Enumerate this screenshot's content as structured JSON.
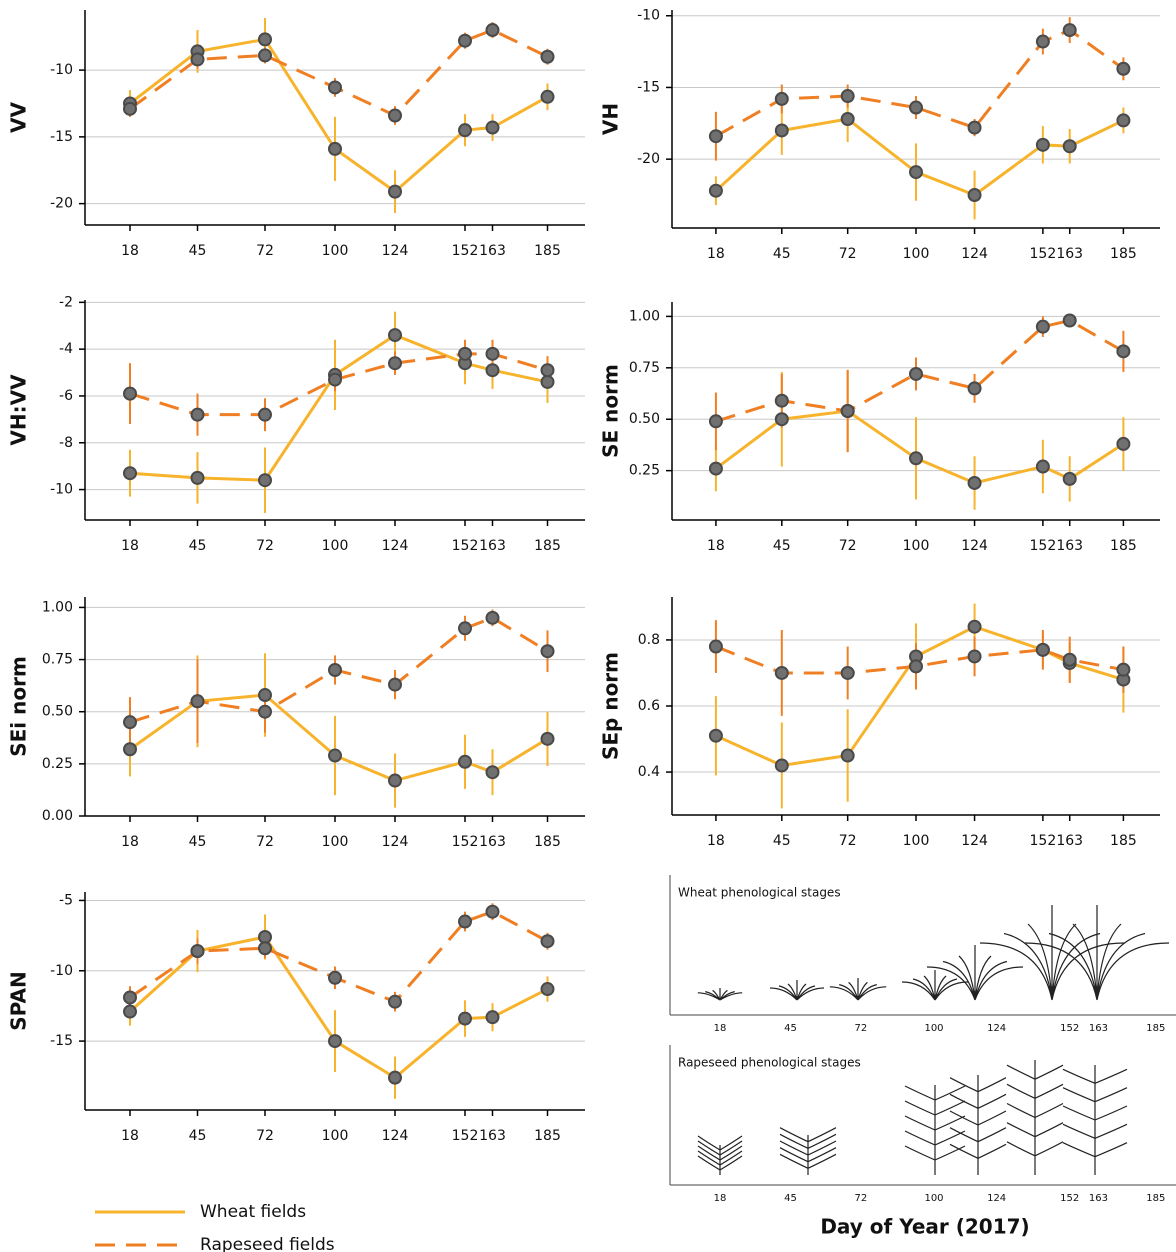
{
  "chart_data": [
    {
      "type": "line",
      "ylabel": "VV",
      "x": [
        18,
        45,
        72,
        100,
        124,
        152,
        163,
        185
      ],
      "xlim": [
        0,
        200
      ],
      "xticks": [
        18,
        45,
        72,
        100,
        124,
        152,
        163,
        185
      ],
      "ylim": [
        -21.6,
        -5.5
      ],
      "yticks": [
        -10,
        -15,
        -20
      ],
      "grid": true,
      "series": [
        {
          "name": "Wheat fields",
          "color": "#f7b32b",
          "linestyle": "solid",
          "values": [
            -12.5,
            -8.6,
            -7.7,
            -15.9,
            -19.1,
            -14.5,
            -14.3,
            -12.0
          ],
          "errors": [
            1.0,
            1.6,
            1.6,
            2.4,
            1.6,
            1.2,
            1.0,
            1.0
          ]
        },
        {
          "name": "Rapeseed fields",
          "color": "#f07f23",
          "linestyle": "dashed",
          "values": [
            -12.9,
            -9.2,
            -8.9,
            -11.3,
            -13.4,
            -7.8,
            -7.0,
            -9.0
          ],
          "errors": [
            0.6,
            0.7,
            0.6,
            0.7,
            0.7,
            0.6,
            0.6,
            0.6
          ]
        }
      ]
    },
    {
      "type": "line",
      "ylabel": "VH",
      "x": [
        18,
        45,
        72,
        100,
        124,
        152,
        163,
        185
      ],
      "xlim": [
        0,
        200
      ],
      "xticks": [
        18,
        45,
        72,
        100,
        124,
        152,
        163,
        185
      ],
      "ylim": [
        -24.8,
        -9.6
      ],
      "yticks": [
        -10,
        -15,
        -20
      ],
      "grid": true,
      "series": [
        {
          "color": "#f7b32b",
          "linestyle": "solid",
          "values": [
            -22.2,
            -18.0,
            -17.2,
            -20.9,
            -22.5,
            -19.0,
            -19.1,
            -17.3
          ],
          "errors": [
            1.0,
            1.7,
            1.6,
            2.0,
            1.7,
            1.3,
            1.2,
            0.9
          ]
        },
        {
          "color": "#f07f23",
          "linestyle": "dashed",
          "values": [
            -18.4,
            -15.8,
            -15.6,
            -16.4,
            -17.8,
            -11.8,
            -11.0,
            -13.7
          ],
          "errors": [
            1.7,
            1.0,
            0.8,
            0.8,
            0.6,
            0.9,
            0.9,
            0.8
          ]
        }
      ]
    },
    {
      "type": "line",
      "ylabel": "VH:VV",
      "x": [
        18,
        45,
        72,
        100,
        124,
        152,
        163,
        185
      ],
      "xlim": [
        0,
        200
      ],
      "xticks": [
        18,
        45,
        72,
        100,
        124,
        152,
        163,
        185
      ],
      "ylim": [
        -11.3,
        -1.9
      ],
      "yticks": [
        -2,
        -4,
        -6,
        -8,
        -10
      ],
      "grid": true,
      "series": [
        {
          "color": "#f7b32b",
          "linestyle": "solid",
          "values": [
            -9.3,
            -9.5,
            -9.6,
            -5.1,
            -3.4,
            -4.6,
            -4.9,
            -5.4
          ],
          "errors": [
            1.0,
            1.1,
            1.4,
            1.5,
            1.0,
            0.9,
            0.8,
            0.9
          ]
        },
        {
          "color": "#f07f23",
          "linestyle": "dashed",
          "values": [
            -5.9,
            -6.8,
            -6.8,
            -5.3,
            -4.6,
            -4.2,
            -4.2,
            -4.9
          ],
          "errors": [
            1.3,
            0.9,
            0.7,
            0.5,
            0.5,
            0.6,
            0.6,
            0.6
          ]
        }
      ]
    },
    {
      "type": "line",
      "ylabel": "SE norm",
      "x": [
        18,
        45,
        72,
        100,
        124,
        152,
        163,
        185
      ],
      "xlim": [
        0,
        200
      ],
      "xticks": [
        18,
        45,
        72,
        100,
        124,
        152,
        163,
        185
      ],
      "ylim": [
        0.01,
        1.07
      ],
      "yticks": [
        {
          "value": 1,
          "label": "1.00"
        },
        {
          "value": 0.75,
          "label": "0.75"
        },
        {
          "value": 0.5,
          "label": "0.50"
        },
        {
          "value": 0.25,
          "label": "0.25"
        }
      ],
      "grid": true,
      "series": [
        {
          "color": "#f7b32b",
          "linestyle": "solid",
          "values": [
            0.26,
            0.5,
            0.54,
            0.31,
            0.19,
            0.27,
            0.21,
            0.38
          ],
          "errors": [
            0.11,
            0.23,
            0.2,
            0.2,
            0.13,
            0.13,
            0.11,
            0.13
          ]
        },
        {
          "color": "#f07f23",
          "linestyle": "dashed",
          "values": [
            0.49,
            0.59,
            0.54,
            0.72,
            0.65,
            0.95,
            0.98,
            0.83
          ],
          "errors": [
            0.14,
            0.13,
            0.2,
            0.08,
            0.07,
            0.05,
            0.03,
            0.1
          ]
        }
      ]
    },
    {
      "type": "line",
      "ylabel": "SEi norm",
      "x": [
        18,
        45,
        72,
        100,
        124,
        152,
        163,
        185
      ],
      "xlim": [
        0,
        200
      ],
      "xticks": [
        18,
        45,
        72,
        100,
        124,
        152,
        163,
        185
      ],
      "ylim": [
        0,
        1.05
      ],
      "yticks": [
        {
          "value": 1,
          "label": "1.00"
        },
        {
          "value": 0.75,
          "label": "0.75"
        },
        {
          "value": 0.5,
          "label": "0.50"
        },
        {
          "value": 0.25,
          "label": "0.25"
        },
        {
          "value": 0,
          "label": "0.00"
        }
      ],
      "grid": true,
      "series": [
        {
          "color": "#f7b32b",
          "linestyle": "solid",
          "values": [
            0.32,
            0.55,
            0.58,
            0.29,
            0.17,
            0.26,
            0.21,
            0.37
          ],
          "errors": [
            0.13,
            0.22,
            0.2,
            0.19,
            0.13,
            0.13,
            0.11,
            0.13
          ]
        },
        {
          "color": "#f07f23",
          "linestyle": "dashed",
          "values": [
            0.45,
            0.55,
            0.5,
            0.7,
            0.63,
            0.9,
            0.95,
            0.79
          ],
          "errors": [
            0.12,
            0.2,
            0.1,
            0.07,
            0.07,
            0.06,
            0.04,
            0.1
          ]
        }
      ]
    },
    {
      "type": "line",
      "ylabel": "SEp norm",
      "x": [
        18,
        45,
        72,
        100,
        124,
        152,
        163,
        185
      ],
      "xlim": [
        0,
        200
      ],
      "xticks": [
        18,
        45,
        72,
        100,
        124,
        152,
        163,
        185
      ],
      "ylim": [
        0.27,
        0.93
      ],
      "yticks": [
        0.8,
        0.6,
        0.4
      ],
      "grid": true,
      "series": [
        {
          "color": "#f7b32b",
          "linestyle": "solid",
          "values": [
            0.51,
            0.42,
            0.45,
            0.75,
            0.84,
            0.77,
            0.73,
            0.68
          ],
          "errors": [
            0.12,
            0.13,
            0.14,
            0.1,
            0.07,
            0.05,
            0.06,
            0.1
          ]
        },
        {
          "color": "#f07f23",
          "linestyle": "dashed",
          "values": [
            0.78,
            0.7,
            0.7,
            0.72,
            0.75,
            0.77,
            0.74,
            0.71
          ],
          "errors": [
            0.08,
            0.13,
            0.08,
            0.07,
            0.06,
            0.06,
            0.07,
            0.07
          ]
        }
      ]
    },
    {
      "type": "line",
      "ylabel": "SPAN",
      "x": [
        18,
        45,
        72,
        100,
        124,
        152,
        163,
        185
      ],
      "xlim": [
        0,
        200
      ],
      "xticks": [
        18,
        45,
        72,
        100,
        124,
        152,
        163,
        185
      ],
      "ylim": [
        -19.9,
        -4.4
      ],
      "yticks": [
        -5,
        -10,
        -15
      ],
      "grid": true,
      "series": [
        {
          "color": "#f7b32b",
          "linestyle": "solid",
          "values": [
            -12.9,
            -8.6,
            -7.6,
            -15.0,
            -17.6,
            -13.4,
            -13.3,
            -11.3
          ],
          "errors": [
            1.0,
            1.5,
            1.6,
            2.2,
            1.5,
            1.3,
            1.0,
            0.9
          ]
        },
        {
          "color": "#f07f23",
          "linestyle": "dashed",
          "values": [
            -11.9,
            -8.6,
            -8.4,
            -10.5,
            -12.2,
            -6.5,
            -5.8,
            -7.9
          ],
          "errors": [
            0.8,
            0.9,
            0.7,
            0.8,
            0.7,
            0.7,
            0.6,
            0.6
          ]
        }
      ]
    }
  ],
  "xlabel": "Day of Year (2017)",
  "phenology": {
    "xticks": [
      18,
      45,
      72,
      100,
      124,
      152,
      163,
      185
    ],
    "panels": [
      {
        "title": "Wheat phenological stages"
      },
      {
        "title": "Rapeseed phenological stages"
      }
    ]
  }
}
